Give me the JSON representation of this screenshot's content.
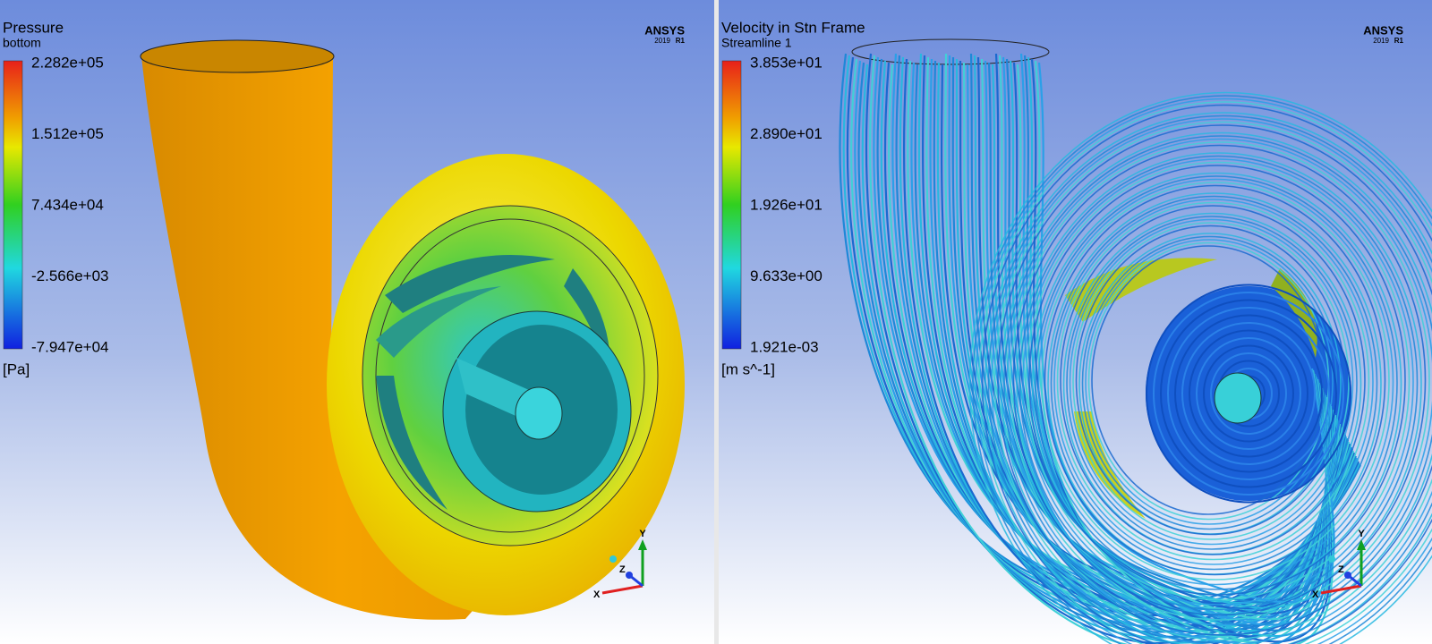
{
  "panels": [
    {
      "title": "Pressure",
      "subtitle": "bottom",
      "legend": {
        "labels": [
          "2.282e+05",
          "1.512e+05",
          "7.434e+04",
          "-2.566e+03",
          "-7.947e+04"
        ],
        "unit": "[Pa]"
      },
      "logo": {
        "name": "ANSYS",
        "version": "2019",
        "release": "R1"
      },
      "axes": {
        "x": "X",
        "y": "Y",
        "z": "Z"
      }
    },
    {
      "title": "Velocity in Stn Frame",
      "subtitle": "Streamline 1",
      "legend": {
        "labels": [
          "3.853e+01",
          "2.890e+01",
          "1.926e+01",
          "9.633e+00",
          "1.921e-03"
        ],
        "unit": "[m s^-1]"
      },
      "logo": {
        "name": "ANSYS",
        "version": "2019",
        "release": "R1"
      },
      "axes": {
        "x": "X",
        "y": "Y",
        "z": "Z"
      }
    }
  ]
}
